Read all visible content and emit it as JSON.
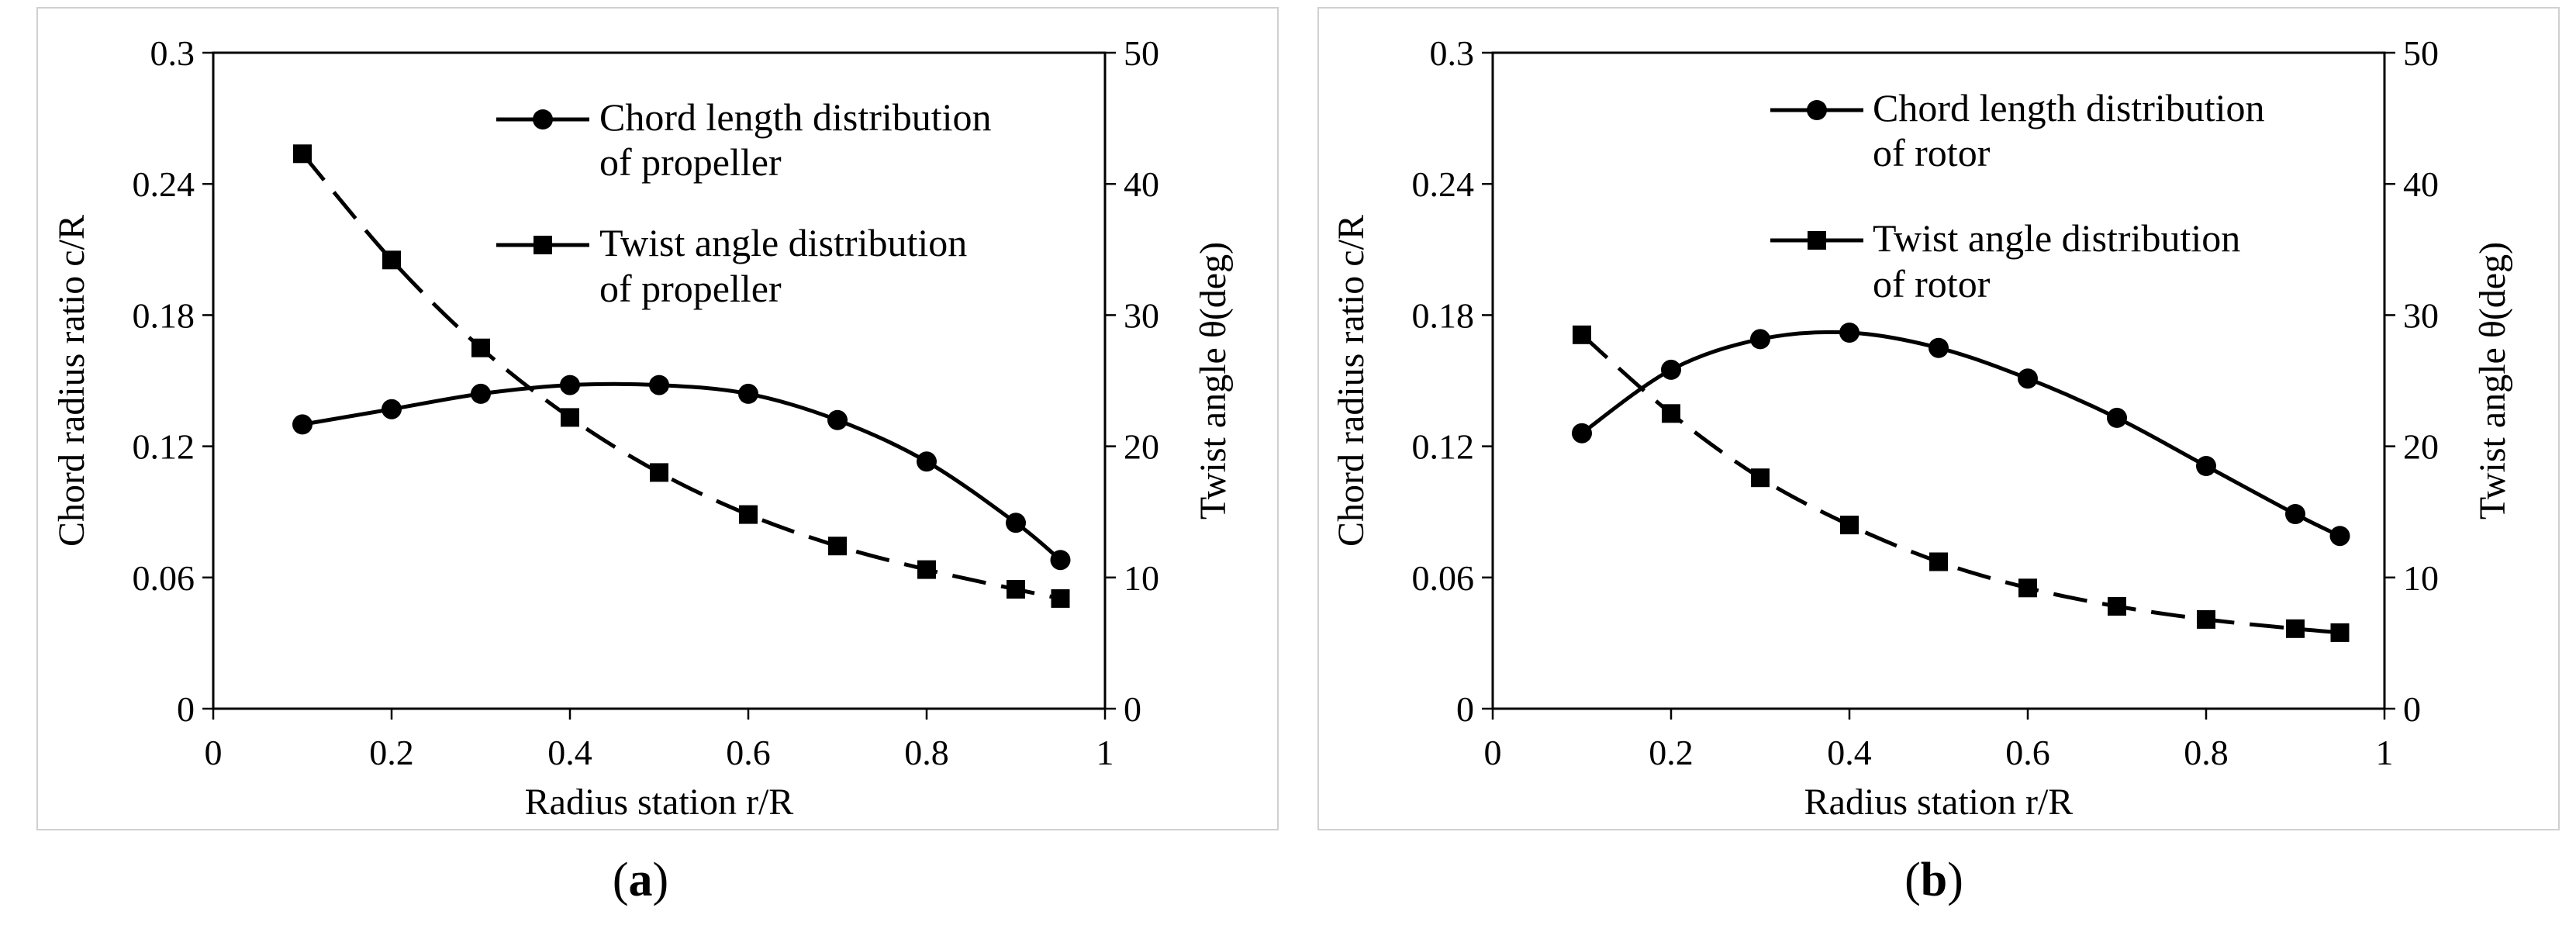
{
  "panels": [
    {
      "label": "a",
      "chart_data": {
        "type": "line",
        "x": [
          0.1,
          0.2,
          0.3,
          0.4,
          0.5,
          0.6,
          0.7,
          0.8,
          0.9,
          0.95
        ],
        "xlabel": "Radius station r/R",
        "ylabel": "Chord radius ratio c/R",
        "y2label": "Twist angle θ(deg)",
        "xlim": [
          0,
          1
        ],
        "ylim": [
          0,
          0.3
        ],
        "y2lim": [
          0,
          50
        ],
        "xticks": [
          "0",
          "0.2",
          "0.4",
          "0.6",
          "0.8",
          "1"
        ],
        "yticks": [
          "0",
          "0.06",
          "0.12",
          "0.18",
          "0.24",
          "0.3"
        ],
        "y2ticks": [
          "0",
          "10",
          "20",
          "30",
          "40",
          "50"
        ],
        "series": [
          {
            "name": "Chord length distribution of propeller",
            "legend_lines": [
              "Chord length distribution",
              "of propeller"
            ],
            "axis": "left",
            "marker": "circle",
            "style": "solid",
            "values": [
              0.13,
              0.137,
              0.144,
              0.148,
              0.148,
              0.144,
              0.132,
              0.113,
              0.085,
              0.068
            ]
          },
          {
            "name": "Twist angle distribution of propeller",
            "legend_lines": [
              "Twist angle distribution",
              "of propeller"
            ],
            "axis": "right",
            "marker": "square",
            "style": "dashed",
            "values": [
              42.3,
              34.2,
              27.5,
              22.2,
              18.0,
              14.8,
              12.4,
              10.6,
              9.1,
              8.4
            ]
          }
        ]
      }
    },
    {
      "label": "b",
      "chart_data": {
        "type": "line",
        "x": [
          0.1,
          0.2,
          0.3,
          0.4,
          0.5,
          0.6,
          0.7,
          0.8,
          0.9,
          0.95
        ],
        "xlabel": "Radius station r/R",
        "ylabel": "Chord radius ratio c/R",
        "y2label": "Twist angle θ(deg)",
        "xlim": [
          0,
          1
        ],
        "ylim": [
          0,
          0.3
        ],
        "y2lim": [
          0,
          50
        ],
        "xticks": [
          "0",
          "0.2",
          "0.4",
          "0.6",
          "0.8",
          "1"
        ],
        "yticks": [
          "0",
          "0.06",
          "0.12",
          "0.18",
          "0.24",
          "0.3"
        ],
        "y2ticks": [
          "0",
          "10",
          "20",
          "30",
          "40",
          "50"
        ],
        "series": [
          {
            "name": "Chord length distribution of rotor",
            "legend_lines": [
              "Chord length distribution",
              "of rotor"
            ],
            "axis": "left",
            "marker": "circle",
            "style": "solid",
            "values": [
              0.126,
              0.155,
              0.169,
              0.172,
              0.165,
              0.151,
              0.133,
              0.111,
              0.089,
              0.079
            ]
          },
          {
            "name": "Twist angle distribution of rotor",
            "legend_lines": [
              "Twist angle distribution",
              "of rotor"
            ],
            "axis": "right",
            "marker": "square",
            "style": "dashed",
            "values": [
              28.5,
              22.5,
              17.6,
              14.0,
              11.2,
              9.2,
              7.8,
              6.8,
              6.1,
              5.8
            ]
          }
        ]
      }
    }
  ]
}
